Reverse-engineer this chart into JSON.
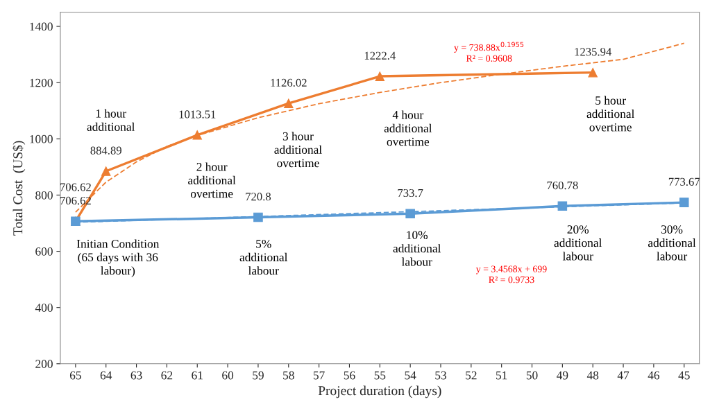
{
  "chart_data": {
    "type": "line",
    "xlabel": "Project duration (days)",
    "ylabel": "Total Cost  (US$)",
    "xlim": [
      65.5,
      44.5
    ],
    "xticks": [
      65,
      64,
      63,
      62,
      61,
      60,
      59,
      58,
      57,
      56,
      55,
      54,
      53,
      52,
      51,
      50,
      49,
      48,
      47,
      46,
      45
    ],
    "ylim": [
      200,
      1450
    ],
    "yticks": [
      200,
      400,
      600,
      800,
      1000,
      1200,
      1400
    ],
    "grid": false,
    "legend": false,
    "series": [
      {
        "color": "#ed7d31",
        "marker": "triangle",
        "line_style": "solid",
        "x": [
          65,
          64,
          61,
          58,
          55,
          48
        ],
        "values": [
          706.62,
          884.89,
          1013.51,
          1126.02,
          1222.4,
          1235.94
        ],
        "value_labels": [
          "706.62",
          "884.89",
          "1013.51",
          "1126.02",
          "1222.4",
          "1235.94"
        ]
      },
      {
        "color": "#5b9bd5",
        "marker": "square",
        "line_style": "solid",
        "x": [
          65,
          59,
          54,
          49,
          45
        ],
        "values": [
          706.62,
          720.8,
          733.7,
          760.78,
          773.67
        ],
        "value_labels": [
          "706.62",
          "720.8",
          "733.7",
          "760.78",
          "773.67"
        ]
      },
      {
        "color": "#ed7d31",
        "marker": "none",
        "line_style": "dashed",
        "x": [
          65,
          64,
          63,
          62,
          61,
          59,
          57,
          55,
          53,
          51,
          49,
          47,
          45
        ],
        "values": [
          739,
          846,
          918,
          973,
          1012,
          1075,
          1125,
          1165,
          1200,
          1230,
          1258,
          1283,
          1340
        ]
      },
      {
        "color": "#5b9bd5",
        "marker": "none",
        "line_style": "dashed",
        "x": [
          65,
          45
        ],
        "values": [
          703,
          772
        ]
      }
    ],
    "annotations": [
      "1 hour\nadditional",
      "2 hour\nadditional\novertime",
      "3 hour\nadditional\novertime",
      "4 hour\nadditional\novertime",
      "5 hour\nadditional\novertime",
      "Initian Condition\n(65 days with 36\nlabour)",
      "5%\nadditional\nlabour",
      "10%\nadditional\nlabour",
      "20%\nadditional\nlabour",
      "30%\nadditional\nlabour",
      "y = 738.88x$^{0.1955}$\nR² = 0.9608",
      "y = 3.4568x + 699\nR² = 0.9733"
    ]
  }
}
